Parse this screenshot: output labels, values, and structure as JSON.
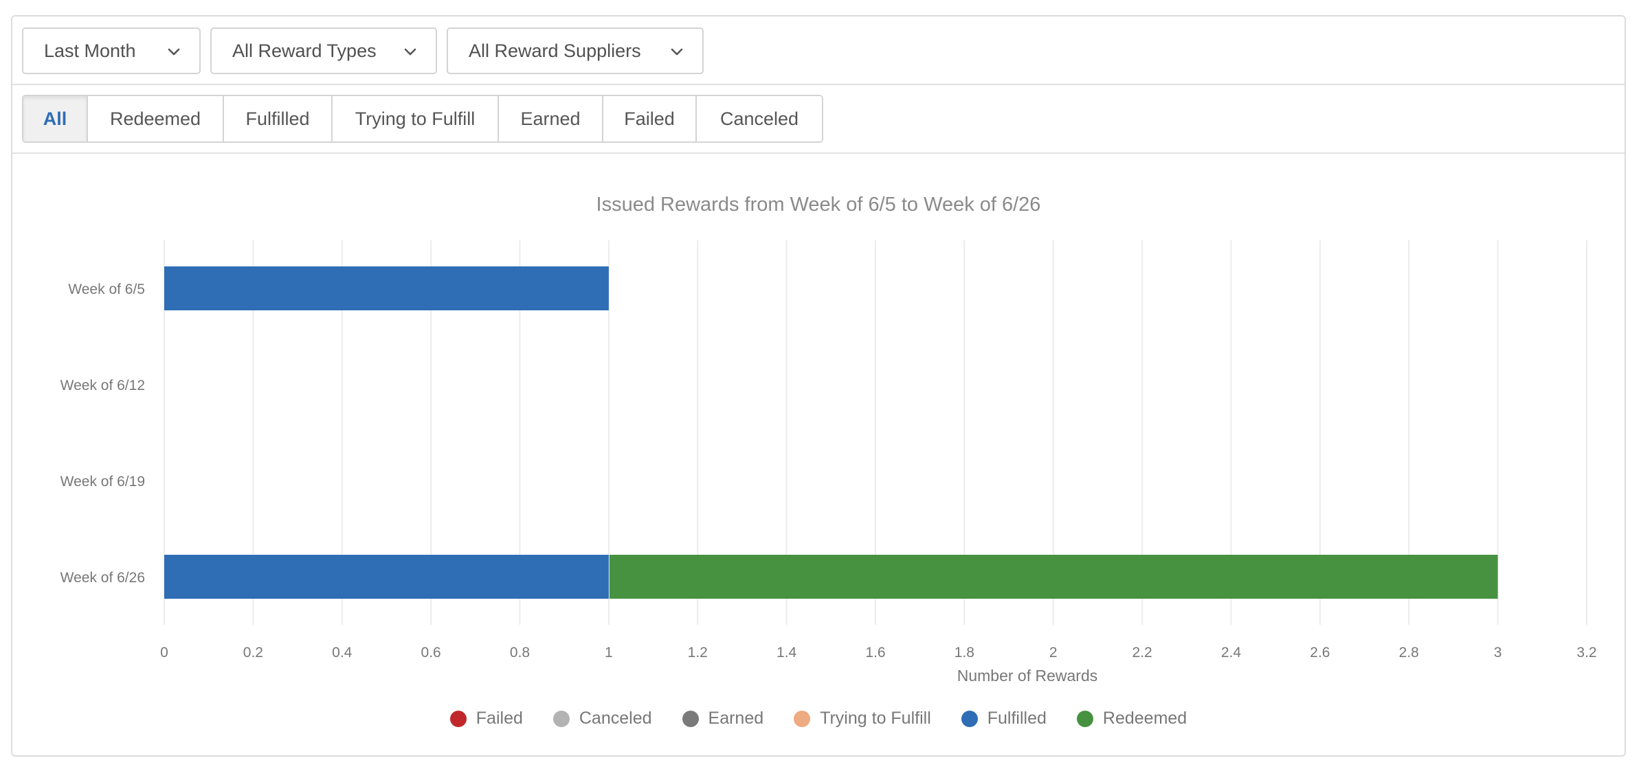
{
  "filters": {
    "date_range": {
      "label": "Last Month"
    },
    "reward_types": {
      "label": "All Reward Types"
    },
    "reward_suppliers": {
      "label": "All Reward Suppliers"
    }
  },
  "tabs": [
    {
      "label": "All",
      "active": true
    },
    {
      "label": "Redeemed",
      "active": false
    },
    {
      "label": "Fulfilled",
      "active": false
    },
    {
      "label": "Trying to Fulfill",
      "active": false
    },
    {
      "label": "Earned",
      "active": false
    },
    {
      "label": "Failed",
      "active": false
    },
    {
      "label": "Canceled",
      "active": false
    }
  ],
  "chart_data": {
    "type": "bar",
    "orientation": "horizontal",
    "stacked": true,
    "title": "Issued Rewards from Week of 6/5 to Week of 6/26",
    "xlabel": "Number of Rewards",
    "ylabel": "",
    "categories": [
      "Week of 6/5",
      "Week of 6/12",
      "Week of 6/19",
      "Week of 6/26"
    ],
    "xlim": [
      0,
      3.2
    ],
    "xticks": [
      "0",
      "0.2",
      "0.4",
      "0.6",
      "0.8",
      "1",
      "1.2",
      "1.4",
      "1.6",
      "1.8",
      "2",
      "2.2",
      "2.4",
      "2.6",
      "2.8",
      "3",
      "3.2"
    ],
    "grid": true,
    "legend_position": "bottom",
    "series": [
      {
        "name": "Failed",
        "color": "#c0282b",
        "values": [
          0,
          0,
          0,
          0
        ]
      },
      {
        "name": "Canceled",
        "color": "#b3b3b3",
        "values": [
          0,
          0,
          0,
          0
        ]
      },
      {
        "name": "Earned",
        "color": "#7a7a7a",
        "values": [
          0,
          0,
          0,
          0
        ]
      },
      {
        "name": "Trying to Fulfill",
        "color": "#eeaa80",
        "values": [
          0,
          0,
          0,
          0
        ]
      },
      {
        "name": "Fulfilled",
        "color": "#2f6db5",
        "values": [
          1,
          0,
          0,
          1
        ]
      },
      {
        "name": "Redeemed",
        "color": "#469240",
        "values": [
          0,
          0,
          0,
          2
        ]
      }
    ]
  }
}
